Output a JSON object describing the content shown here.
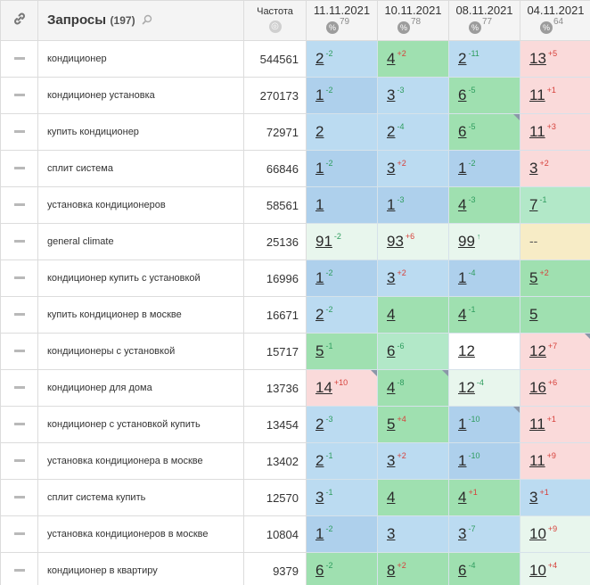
{
  "header": {
    "queries_title": "Запросы",
    "queries_count": "(197)",
    "freq_label": "Частота",
    "dates": [
      {
        "date": "11.11.2021",
        "pct": "79"
      },
      {
        "date": "10.11.2021",
        "pct": "78"
      },
      {
        "date": "08.11.2021",
        "pct": "77"
      },
      {
        "date": "04.11.2021",
        "pct": "64"
      }
    ]
  },
  "rows": [
    {
      "query": "кондиционер",
      "freq": "544561",
      "cells": [
        {
          "v": "2",
          "ch": "-2",
          "dir": "up",
          "bg": "lb"
        },
        {
          "v": "4",
          "ch": "+2",
          "dir": "down",
          "bg": "gr"
        },
        {
          "v": "2",
          "ch": "-11",
          "dir": "up",
          "bg": "lb"
        },
        {
          "v": "13",
          "ch": "+5",
          "dir": "down",
          "bg": "pk"
        }
      ]
    },
    {
      "query": "кондиционер установка",
      "freq": "270173",
      "cells": [
        {
          "v": "1",
          "ch": "-2",
          "dir": "up",
          "bg": "bl"
        },
        {
          "v": "3",
          "ch": "-3",
          "dir": "up",
          "bg": "lb"
        },
        {
          "v": "6",
          "ch": "-5",
          "dir": "up",
          "bg": "gr"
        },
        {
          "v": "11",
          "ch": "+1",
          "dir": "down",
          "bg": "pk"
        }
      ]
    },
    {
      "query": "купить кондиционер",
      "freq": "72971",
      "cells": [
        {
          "v": "2",
          "ch": "",
          "dir": "",
          "bg": "lb"
        },
        {
          "v": "2",
          "ch": "-4",
          "dir": "up",
          "bg": "lb"
        },
        {
          "v": "6",
          "ch": "-5",
          "dir": "up",
          "bg": "gr",
          "tri": true
        },
        {
          "v": "11",
          "ch": "+3",
          "dir": "down",
          "bg": "pk"
        }
      ]
    },
    {
      "query": "сплит система",
      "freq": "66846",
      "cells": [
        {
          "v": "1",
          "ch": "-2",
          "dir": "up",
          "bg": "bl"
        },
        {
          "v": "3",
          "ch": "+2",
          "dir": "down",
          "bg": "lb"
        },
        {
          "v": "1",
          "ch": "-2",
          "dir": "up",
          "bg": "bl"
        },
        {
          "v": "3",
          "ch": "+2",
          "dir": "down",
          "bg": "pk"
        }
      ]
    },
    {
      "query": "установка кондиционеров",
      "freq": "58561",
      "cells": [
        {
          "v": "1",
          "ch": "",
          "dir": "",
          "bg": "bl"
        },
        {
          "v": "1",
          "ch": "-3",
          "dir": "up",
          "bg": "bl"
        },
        {
          "v": "4",
          "ch": "-3",
          "dir": "up",
          "bg": "gr"
        },
        {
          "v": "7",
          "ch": "-1",
          "dir": "up",
          "bg": "lg"
        }
      ]
    },
    {
      "query": "general climate",
      "freq": "25136",
      "cells": [
        {
          "v": "91",
          "ch": "-2",
          "dir": "up",
          "bg": "vg"
        },
        {
          "v": "93",
          "ch": "+6",
          "dir": "down",
          "bg": "vg"
        },
        {
          "v": "99",
          "ch": "↑",
          "dir": "up",
          "bg": "vg"
        },
        {
          "v": "--",
          "ch": "",
          "dir": "",
          "bg": "ye",
          "nodata": true
        }
      ]
    },
    {
      "query": "кондиционер купить с установкой",
      "freq": "16996",
      "cells": [
        {
          "v": "1",
          "ch": "-2",
          "dir": "up",
          "bg": "bl"
        },
        {
          "v": "3",
          "ch": "+2",
          "dir": "down",
          "bg": "lb"
        },
        {
          "v": "1",
          "ch": "-4",
          "dir": "up",
          "bg": "bl"
        },
        {
          "v": "5",
          "ch": "+2",
          "dir": "down",
          "bg": "gr"
        }
      ]
    },
    {
      "query": "купить кондиционер в москве",
      "freq": "16671",
      "cells": [
        {
          "v": "2",
          "ch": "-2",
          "dir": "up",
          "bg": "lb"
        },
        {
          "v": "4",
          "ch": "",
          "dir": "",
          "bg": "gr"
        },
        {
          "v": "4",
          "ch": "-1",
          "dir": "up",
          "bg": "gr"
        },
        {
          "v": "5",
          "ch": "",
          "dir": "",
          "bg": "gr"
        }
      ]
    },
    {
      "query": "кондиционеры с установкой",
      "freq": "15717",
      "cells": [
        {
          "v": "5",
          "ch": "-1",
          "dir": "up",
          "bg": "gr"
        },
        {
          "v": "6",
          "ch": "-6",
          "dir": "up",
          "bg": "lg"
        },
        {
          "v": "12",
          "ch": "",
          "dir": "",
          "bg": "wt"
        },
        {
          "v": "12",
          "ch": "+7",
          "dir": "down",
          "bg": "pk",
          "tri": true
        }
      ]
    },
    {
      "query": "кондиционер для дома",
      "freq": "13736",
      "cells": [
        {
          "v": "14",
          "ch": "+10",
          "dir": "down",
          "bg": "pk",
          "tri": true
        },
        {
          "v": "4",
          "ch": "-8",
          "dir": "up",
          "bg": "gr",
          "tri": true
        },
        {
          "v": "12",
          "ch": "-4",
          "dir": "up",
          "bg": "vg"
        },
        {
          "v": "16",
          "ch": "+6",
          "dir": "down",
          "bg": "pk"
        }
      ]
    },
    {
      "query": "кондиционер с установкой купить",
      "freq": "13454",
      "cells": [
        {
          "v": "2",
          "ch": "-3",
          "dir": "up",
          "bg": "lb"
        },
        {
          "v": "5",
          "ch": "+4",
          "dir": "down",
          "bg": "gr"
        },
        {
          "v": "1",
          "ch": "-10",
          "dir": "up",
          "bg": "bl",
          "tri": true
        },
        {
          "v": "11",
          "ch": "+1",
          "dir": "down",
          "bg": "pk"
        }
      ]
    },
    {
      "query": "установка кондиционера в москве",
      "freq": "13402",
      "cells": [
        {
          "v": "2",
          "ch": "-1",
          "dir": "up",
          "bg": "lb"
        },
        {
          "v": "3",
          "ch": "+2",
          "dir": "down",
          "bg": "lb"
        },
        {
          "v": "1",
          "ch": "-10",
          "dir": "up",
          "bg": "bl"
        },
        {
          "v": "11",
          "ch": "+9",
          "dir": "down",
          "bg": "pk"
        }
      ]
    },
    {
      "query": "сплит система купить",
      "freq": "12570",
      "cells": [
        {
          "v": "3",
          "ch": "-1",
          "dir": "up",
          "bg": "lb"
        },
        {
          "v": "4",
          "ch": "",
          "dir": "",
          "bg": "gr"
        },
        {
          "v": "4",
          "ch": "+1",
          "dir": "down",
          "bg": "gr"
        },
        {
          "v": "3",
          "ch": "+1",
          "dir": "down",
          "bg": "lb"
        }
      ]
    },
    {
      "query": "установка кондиционеров в москве",
      "freq": "10804",
      "cells": [
        {
          "v": "1",
          "ch": "-2",
          "dir": "up",
          "bg": "bl"
        },
        {
          "v": "3",
          "ch": "",
          "dir": "",
          "bg": "lb"
        },
        {
          "v": "3",
          "ch": "-7",
          "dir": "up",
          "bg": "lb"
        },
        {
          "v": "10",
          "ch": "+9",
          "dir": "down",
          "bg": "vg"
        }
      ]
    },
    {
      "query": "кондиционер в квартиру",
      "freq": "9379",
      "cells": [
        {
          "v": "6",
          "ch": "-2",
          "dir": "up",
          "bg": "gr"
        },
        {
          "v": "8",
          "ch": "+2",
          "dir": "down",
          "bg": "gr"
        },
        {
          "v": "6",
          "ch": "-4",
          "dir": "up",
          "bg": "gr"
        },
        {
          "v": "10",
          "ch": "+4",
          "dir": "down",
          "bg": "vg"
        }
      ]
    }
  ]
}
